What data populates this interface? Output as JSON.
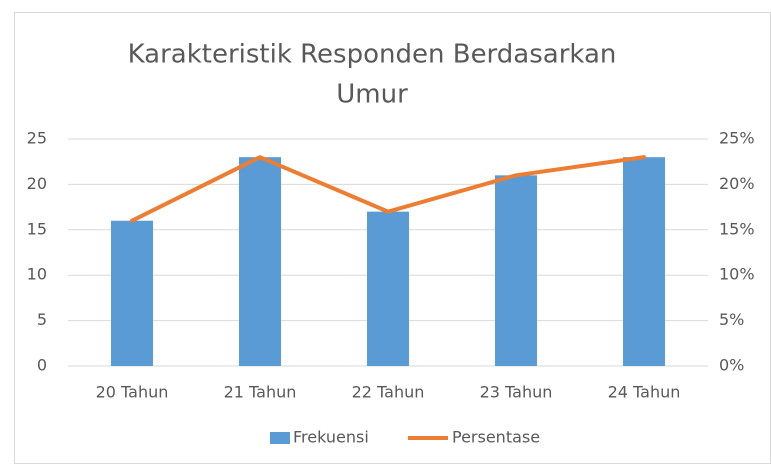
{
  "chart_data": {
    "type": "bar-line",
    "title": [
      "Karakteristik Responden Berdasarkan",
      "Umur"
    ],
    "categories": [
      "20 Tahun",
      "21 Tahun",
      "22 Tahun",
      "23 Tahun",
      "24 Tahun"
    ],
    "series": [
      {
        "name": "Frekuensi",
        "color": "#5b9bd5",
        "type": "bar",
        "values": [
          16,
          23,
          17,
          21,
          23
        ]
      },
      {
        "name": "Persentase",
        "color": "#ed7d31",
        "type": "line",
        "axis": "y2",
        "values": [
          16,
          23,
          17,
          21,
          23
        ]
      }
    ],
    "ylim": [
      0,
      25
    ],
    "yticks": [
      0,
      5,
      10,
      15,
      20,
      25
    ],
    "y2lim": [
      0,
      25
    ],
    "y2ticks": [
      {
        "value": 0,
        "label": "0%"
      },
      {
        "value": 5,
        "label": "5%"
      },
      {
        "value": 10,
        "label": "10%"
      },
      {
        "value": 15,
        "label": "15%"
      },
      {
        "value": 20,
        "label": "20%"
      },
      {
        "value": 25,
        "label": "25%"
      }
    ],
    "grid": true,
    "legend": "bottom"
  }
}
